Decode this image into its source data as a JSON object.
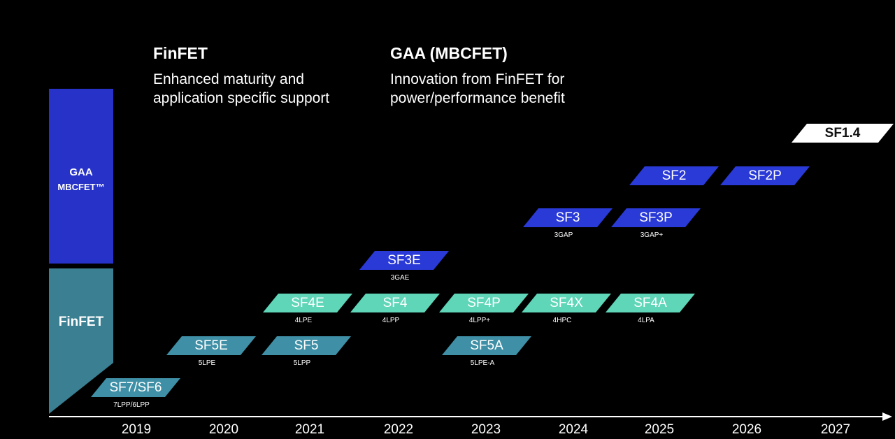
{
  "headers": {
    "finfet": {
      "title": "FinFET",
      "subtitle": "Enhanced maturity and\napplication specific support"
    },
    "gaa": {
      "title": "GAA (MBCFET)",
      "subtitle": "Innovation from FinFET for\npower/performance benefit"
    }
  },
  "categories": {
    "gaa": {
      "label_line1": "GAA",
      "label_line2": "MBCFET™",
      "color": "#2733c8"
    },
    "finfet": {
      "label": "FinFET",
      "color": "#3a7f92"
    }
  },
  "colors": {
    "teal": "#5fd6b8",
    "steel": "#3f90a6",
    "blue": "#2a3ad6",
    "white": "#ffffff"
  },
  "years": [
    "2019",
    "2020",
    "2021",
    "2022",
    "2023",
    "2024",
    "2025",
    "2026",
    "2027"
  ],
  "nodes": [
    {
      "name": "SF7/SF6",
      "sub": "7LPP/6LPP",
      "color": "steel",
      "year": "2019"
    },
    {
      "name": "SF5E",
      "sub": "5LPE",
      "color": "steel",
      "year": "2020"
    },
    {
      "name": "SF5",
      "sub": "5LPP",
      "color": "steel",
      "year": "2021"
    },
    {
      "name": "SF5A",
      "sub": "5LPE-A",
      "color": "steel",
      "year": "2023"
    },
    {
      "name": "SF4E",
      "sub": "4LPE",
      "color": "teal",
      "year": "2021"
    },
    {
      "name": "SF4",
      "sub": "4LPP",
      "color": "teal",
      "year": "2022"
    },
    {
      "name": "SF4P",
      "sub": "4LPP+",
      "color": "teal",
      "year": "2023"
    },
    {
      "name": "SF4X",
      "sub": "4HPC",
      "color": "teal",
      "year": "2024"
    },
    {
      "name": "SF4A",
      "sub": "4LPA",
      "color": "teal",
      "year": "2025"
    },
    {
      "name": "SF3E",
      "sub": "3GAE",
      "color": "blue",
      "year": "2022"
    },
    {
      "name": "SF3",
      "sub": "3GAP",
      "color": "blue",
      "year": "2024"
    },
    {
      "name": "SF3P",
      "sub": "3GAP+",
      "color": "blue",
      "year": "2025"
    },
    {
      "name": "SF2",
      "sub": "",
      "color": "blue",
      "year": "2025"
    },
    {
      "name": "SF2P",
      "sub": "",
      "color": "blue",
      "year": "2026"
    },
    {
      "name": "SF1.4",
      "sub": "",
      "color": "white",
      "year": "2027"
    }
  ]
}
